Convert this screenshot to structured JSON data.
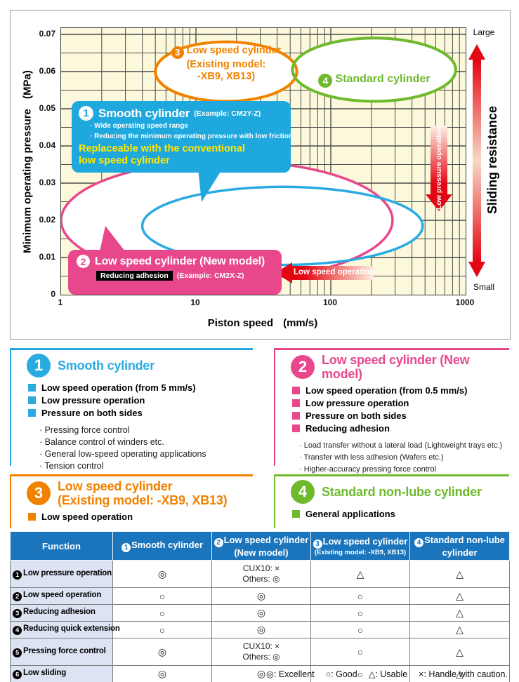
{
  "chart_data": {
    "type": "area",
    "x_scale": "log",
    "xlabel": "Piston speed",
    "x_unit": "(mm/s)",
    "ylabel": "Minimum operating pressure",
    "y_unit": "(MPa)",
    "xlim": [
      1,
      1000
    ],
    "ylim": [
      0,
      0.0717
    ],
    "x_ticks": [
      1,
      10,
      100,
      1000
    ],
    "y_ticks": [
      0,
      0.01,
      0.02,
      0.03,
      0.04,
      0.05,
      0.06,
      0.07
    ],
    "y_minor_step": 0.005,
    "grid": true,
    "regions": [
      {
        "id": "low-speed-new",
        "label": "Low speed cylinder (New model)",
        "color": "#e8488b",
        "x_range": [
          1,
          287
        ],
        "y_range": [
          0.004,
          0.036
        ]
      },
      {
        "id": "smooth",
        "label": "Smooth cylinder",
        "color": "#29abe2",
        "x_range": [
          4,
          480
        ],
        "y_range": [
          0.008,
          0.029
        ]
      },
      {
        "id": "low-speed-existing",
        "label": "Low speed cylinder (Existing model: -XB9, XB13)",
        "color": "#f08200",
        "x_range": [
          5,
          56
        ],
        "y_range": [
          0.052,
          0.068
        ]
      },
      {
        "id": "standard",
        "label": "Standard cylinder",
        "color": "#6fba2c",
        "x_range": [
          52,
          845
        ],
        "y_range": [
          0.052,
          0.069
        ]
      }
    ]
  },
  "chart": {
    "region_labels": {
      "existing": {
        "num": "3",
        "line1": "Low speed cylinder",
        "line2": "(Existing model:",
        "line3": "-XB9, XB13)"
      },
      "standard": {
        "num": "4",
        "text": "Standard cylinder"
      }
    },
    "callouts": {
      "smooth": {
        "num": "1",
        "title": "Smooth cylinder",
        "example": "(Example: CM2Y-Z)",
        "points": [
          "· Wide operating speed range",
          "· Reducing the minimum operating pressure with low friction"
        ],
        "highlight_lines": [
          "Replaceable with the conventional",
          "low speed cylinder"
        ]
      },
      "low_speed_new": {
        "num": "2",
        "title": "Low speed cylinder (New model)",
        "badge": "Reducing adhesion",
        "example": "(Example: CM2X-Z)"
      }
    },
    "arrows": {
      "low_pressure": "Low pressure operation",
      "low_speed": "Low speed operation"
    },
    "side": {
      "top": "Large",
      "bottom": "Small",
      "label": "Sliding resistance"
    }
  },
  "sections": [
    {
      "num": "1",
      "color": "#29abe2",
      "title": "Smooth cylinder",
      "title2": "",
      "bullets": [
        "Low speed operation (from 5 mm/s)",
        "Low pressure operation",
        "Pressure on both sides"
      ],
      "applications": [
        "· Pressing force control",
        "· Balance control of winders etc.",
        "· General low-speed operating applications",
        "· Tension control"
      ]
    },
    {
      "num": "2",
      "color": "#e8488b",
      "title": "Low speed cylinder (New model)",
      "title2": "",
      "bullets": [
        "Low speed operation (from 0.5 mm/s)",
        "Low pressure operation",
        "Pressure on both sides",
        "Reducing adhesion"
      ],
      "applications": [
        "· Load transfer without a lateral load (Lightweight trays etc.)",
        "· Transfer with less adhesion (Wafers etc.)",
        "· Higher-accuracy pressing force control"
      ]
    },
    {
      "num": "3",
      "color": "#f08200",
      "title": "Low speed cylinder",
      "title2": "(Existing model: -XB9, XB13)",
      "bullets": [
        "Low speed operation"
      ],
      "applications": []
    },
    {
      "num": "4",
      "color": "#6fba2c",
      "title": "Standard non-lube cylinder",
      "title2": "",
      "bullets": [
        "General applications"
      ],
      "applications": []
    }
  ],
  "table": {
    "col_headers": [
      {
        "num": "",
        "lines": [
          "Function"
        ]
      },
      {
        "num": "1",
        "lines": [
          "Smooth cylinder"
        ]
      },
      {
        "num": "2",
        "lines": [
          "Low speed cylinder",
          "(New model)"
        ]
      },
      {
        "num": "3",
        "lines": [
          "Low speed cylinder"
        ],
        "sub": "(Existing model: -XB9, XB13)"
      },
      {
        "num": "4",
        "lines": [
          "Standard non-lube",
          "cylinder"
        ]
      }
    ],
    "rows": [
      {
        "num": "1",
        "label": "Low pressure operation",
        "cells": [
          "◎",
          "CUX10: ×\nOthers: ◎",
          "△",
          "△"
        ],
        "tall": true
      },
      {
        "num": "2",
        "label": "Low speed operation",
        "cells": [
          "○",
          "◎",
          "○",
          "△"
        ],
        "tall": false
      },
      {
        "num": "3",
        "label": "Reducing adhesion",
        "cells": [
          "○",
          "◎",
          "○",
          "△"
        ],
        "tall": false
      },
      {
        "num": "4",
        "label": "Reducing quick extension",
        "cells": [
          "○",
          "◎",
          "○",
          "△"
        ],
        "tall": false
      },
      {
        "num": "5",
        "label": "Pressing force control",
        "cells": [
          "◎",
          "CUX10: ×\nOthers: ◎",
          "○",
          "△"
        ],
        "tall": true
      },
      {
        "num": "6",
        "label": "Low sliding",
        "cells": [
          "◎",
          "◎",
          "○",
          "△"
        ],
        "tall": false
      }
    ],
    "legend": [
      "◎: Excellent",
      "○: Good",
      "△: Usable",
      "×: Handle with caution."
    ]
  }
}
